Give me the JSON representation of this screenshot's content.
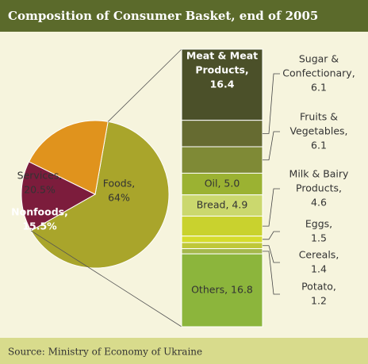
{
  "chart_data": {
    "type": "bar_of_pie",
    "title": "Composition of Consumer Basket, end of 2005",
    "source": "Source: Ministry of Economy of Ukraine",
    "pie": {
      "labels": [
        [
          "Foods,",
          "64%"
        ],
        [
          "Nonfoods,",
          "15.5%"
        ],
        [
          "Services,",
          "20.5%"
        ]
      ],
      "values": [
        64,
        15.5,
        20.5
      ],
      "colors": [
        "#a9a52b",
        "#7c1c3c",
        "#e0931d"
      ]
    },
    "bar": {
      "labels": [
        [
          "Meat & Meat",
          "Products,",
          "16.4"
        ],
        [
          "Sugar &",
          "Confectionary,",
          "6.1"
        ],
        [
          "Fruits &",
          "Vegetables,",
          "6.1"
        ],
        [
          "Oil, 5.0"
        ],
        [
          "Bread, 4.9"
        ],
        [
          "Milk & Bairy",
          "Products,",
          "4.6"
        ],
        [
          "Eggs,",
          "1.5"
        ],
        [
          "Cereals,",
          "1.4"
        ],
        [
          "Potato,",
          "1.2"
        ],
        [
          "Others, 16.8"
        ]
      ],
      "values": [
        16.4,
        6.1,
        6.1,
        5.0,
        4.9,
        4.6,
        1.5,
        1.4,
        1.2,
        16.8
      ],
      "colors": [
        "#4b5029",
        "#666b31",
        "#7f8a36",
        "#9bb232",
        "#cbd86e",
        "#c9d22e",
        "#d5dc2c",
        "#bfc839",
        "#a5b84c",
        "#8cb53c"
      ]
    }
  }
}
